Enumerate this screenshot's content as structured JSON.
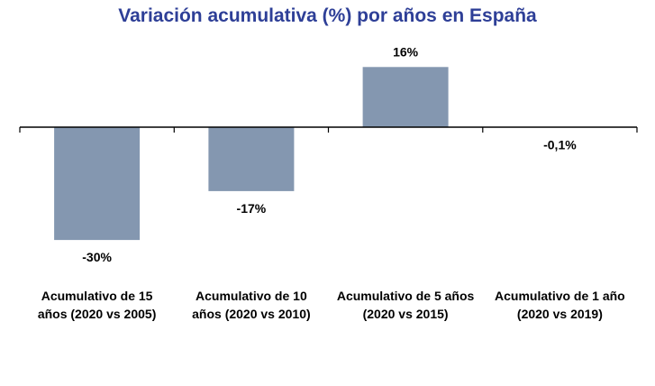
{
  "chart_data": {
    "type": "bar",
    "title": "Variación acumulativa (%) por años en España",
    "categories": [
      [
        "Acumulativo de 15",
        "años (2020 vs 2005)"
      ],
      [
        "Acumulativo de 10",
        "años (2020 vs 2010)"
      ],
      [
        "Acumulativo de 5 años",
        "(2020 vs 2015)"
      ],
      [
        "Acumulativo de 1 año",
        "(2020 vs 2019)"
      ]
    ],
    "values": [
      -30,
      -17,
      16,
      -0.1
    ],
    "data_labels": [
      "-30%",
      "-17%",
      "16%",
      "-0,1%"
    ],
    "xlabel": "",
    "ylabel": "",
    "ylim": [
      -35,
      20
    ],
    "grid": false,
    "legend": "none",
    "bar_color": "#8497B0",
    "title_color": "#2E3F97"
  }
}
